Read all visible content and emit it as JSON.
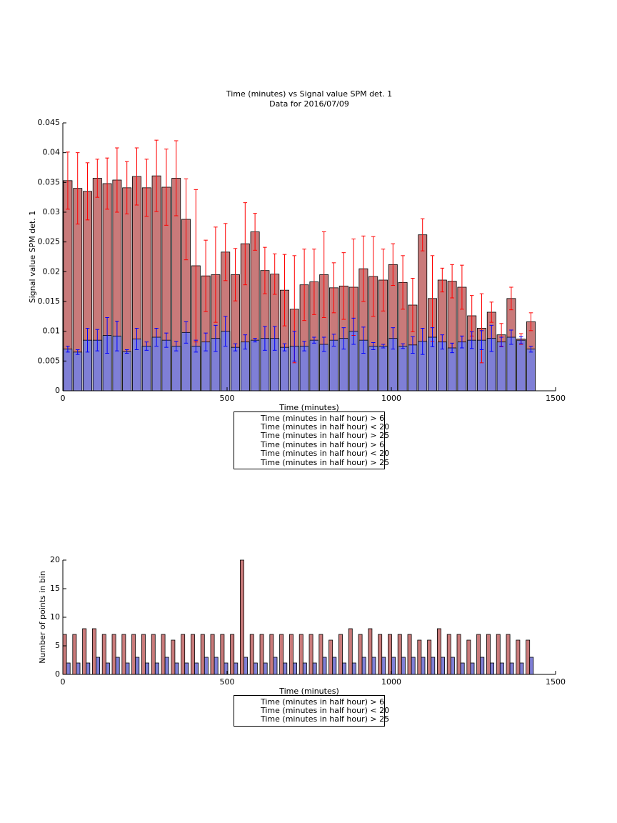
{
  "chart_data": [
    {
      "type": "bar",
      "barmode": "overlay",
      "title": "Time (minutes) vs Signal value SPM det. 1",
      "subtitle": "Data for 2016/07/09",
      "x_label": "Time (minutes)",
      "y_label": "Signal value SPM det. 1",
      "x": [
        15,
        45,
        75,
        105,
        135,
        165,
        195,
        225,
        255,
        285,
        315,
        345,
        375,
        405,
        435,
        465,
        495,
        525,
        555,
        585,
        615,
        645,
        675,
        705,
        735,
        765,
        795,
        825,
        855,
        885,
        915,
        945,
        975,
        1005,
        1035,
        1065,
        1095,
        1125,
        1155,
        1185,
        1215,
        1245,
        1275,
        1305,
        1335,
        1365,
        1395,
        1425
      ],
      "xlim": [
        0,
        1500
      ],
      "xticks": [
        0,
        500,
        1000,
        1500
      ],
      "ylim": [
        0,
        0.045
      ],
      "yticks": [
        0,
        0.005,
        0.01,
        0.015,
        0.02,
        0.025,
        0.03,
        0.035,
        0.04,
        0.045
      ],
      "legend": "bottom",
      "series": [
        {
          "name": "Time (minutes in half hour) > 6\nTime (minutes in half hour) < 20",
          "color": "#c97a7a",
          "error_color": "#ff0000",
          "values": [
            0.0353,
            0.034,
            0.0335,
            0.0357,
            0.0348,
            0.0354,
            0.0341,
            0.036,
            0.0341,
            0.0361,
            0.0342,
            0.0357,
            0.0288,
            0.021,
            0.0193,
            0.0195,
            0.0233,
            0.0195,
            0.0247,
            0.0267,
            0.0202,
            0.0196,
            0.0169,
            0.0137,
            0.0178,
            0.0183,
            0.0195,
            0.0173,
            0.0176,
            0.0174,
            0.0205,
            0.0192,
            0.0186,
            0.0212,
            0.0182,
            0.0144,
            0.0262,
            0.0155,
            0.0186,
            0.0184,
            0.0174,
            0.0126,
            0.0105,
            0.0132,
            0.0094,
            0.0155,
            0.0087,
            0.0116
          ],
          "errors": [
            0.0048,
            0.006,
            0.0048,
            0.0032,
            0.0043,
            0.0054,
            0.0044,
            0.0048,
            0.0048,
            0.006,
            0.0064,
            0.0063,
            0.0068,
            0.0128,
            0.006,
            0.008,
            0.0048,
            0.0044,
            0.0069,
            0.0031,
            0.0039,
            0.0034,
            0.006,
            0.009,
            0.006,
            0.0055,
            0.0072,
            0.0042,
            0.0056,
            0.0081,
            0.0055,
            0.0067,
            0.0052,
            0.0035,
            0.0045,
            0.0045,
            0.0027,
            0.0072,
            0.002,
            0.0028,
            0.0037,
            0.0034,
            0.0058,
            0.0017,
            0.0019,
            0.0019,
            0.0009,
            0.0015
          ]
        },
        {
          "name": "Time (minutes in half hour) > 25",
          "color": "#7f7fd6",
          "error_color": "#0000ff",
          "values": [
            0.007,
            0.0065,
            0.0085,
            0.0085,
            0.0093,
            0.0092,
            0.0066,
            0.0087,
            0.0075,
            0.009,
            0.0085,
            0.0075,
            0.0098,
            0.0075,
            0.0082,
            0.0088,
            0.01,
            0.0073,
            0.0082,
            0.0085,
            0.0088,
            0.0088,
            0.0073,
            0.0075,
            0.0075,
            0.0085,
            0.0078,
            0.0085,
            0.0088,
            0.01,
            0.0085,
            0.0075,
            0.0075,
            0.0088,
            0.0075,
            0.0077,
            0.0083,
            0.009,
            0.0082,
            0.0072,
            0.0082,
            0.0085,
            0.0085,
            0.0088,
            0.0082,
            0.009,
            0.0085,
            0.007
          ],
          "errors": [
            0.0005,
            0.0004,
            0.002,
            0.0018,
            0.003,
            0.0025,
            0.0003,
            0.0018,
            0.0007,
            0.0015,
            0.0012,
            0.0008,
            0.0018,
            0.001,
            0.0015,
            0.0022,
            0.0025,
            0.0006,
            0.0012,
            0.0003,
            0.002,
            0.002,
            0.0006,
            0.0025,
            0.0008,
            0.0005,
            0.0012,
            0.001,
            0.0018,
            0.0022,
            0.0022,
            0.0006,
            0.0003,
            0.0018,
            0.0004,
            0.0014,
            0.0022,
            0.0016,
            0.0012,
            0.0008,
            0.001,
            0.0014,
            0.0016,
            0.0022,
            0.0008,
            0.0012,
            0.0006,
            0.0005
          ]
        }
      ],
      "error_legend": [
        {
          "name": "Time (minutes in half hour) > 6\nTime (minutes in half hour) < 20",
          "color": "#ff0000"
        },
        {
          "name": "Time (minutes in half hour) > 25",
          "color": "#0000ff"
        }
      ]
    },
    {
      "type": "bar",
      "barmode": "group",
      "x_label": "Time (minutes)",
      "y_label": "Number of points in bin",
      "x": [
        15,
        45,
        75,
        105,
        135,
        165,
        195,
        225,
        255,
        285,
        315,
        345,
        375,
        405,
        435,
        465,
        495,
        525,
        555,
        585,
        615,
        645,
        675,
        705,
        735,
        765,
        795,
        825,
        855,
        885,
        915,
        945,
        975,
        1005,
        1035,
        1065,
        1095,
        1125,
        1155,
        1185,
        1215,
        1245,
        1275,
        1305,
        1335,
        1365,
        1395,
        1425
      ],
      "xlim": [
        0,
        1500
      ],
      "xticks": [
        0,
        500,
        1000,
        1500
      ],
      "ylim": [
        0,
        20
      ],
      "yticks": [
        0,
        5,
        10,
        15,
        20
      ],
      "legend": "bottom",
      "series": [
        {
          "name": "Time (minutes in half hour) > 6\nTime (minutes in half hour) < 20",
          "color": "#c97a7a",
          "values": [
            7,
            7,
            8,
            8,
            7,
            7,
            7,
            7,
            7,
            7,
            7,
            6,
            7,
            7,
            7,
            7,
            7,
            7,
            20,
            7,
            7,
            7,
            7,
            7,
            7,
            7,
            7,
            6,
            7,
            8,
            7,
            8,
            7,
            7,
            7,
            7,
            6,
            6,
            8,
            7,
            7,
            6,
            7,
            7,
            7,
            7,
            6,
            6
          ]
        },
        {
          "name": "Time (minutes in half hour) > 25",
          "color": "#7f7fd6",
          "values": [
            2,
            2,
            2,
            3,
            2,
            3,
            2,
            3,
            2,
            2,
            3,
            2,
            2,
            2,
            3,
            3,
            2,
            2,
            3,
            2,
            2,
            3,
            2,
            2,
            2,
            2,
            3,
            3,
            2,
            2,
            3,
            3,
            3,
            3,
            3,
            3,
            3,
            3,
            3,
            3,
            2,
            2,
            3,
            2,
            2,
            2,
            2,
            3
          ]
        }
      ]
    }
  ]
}
